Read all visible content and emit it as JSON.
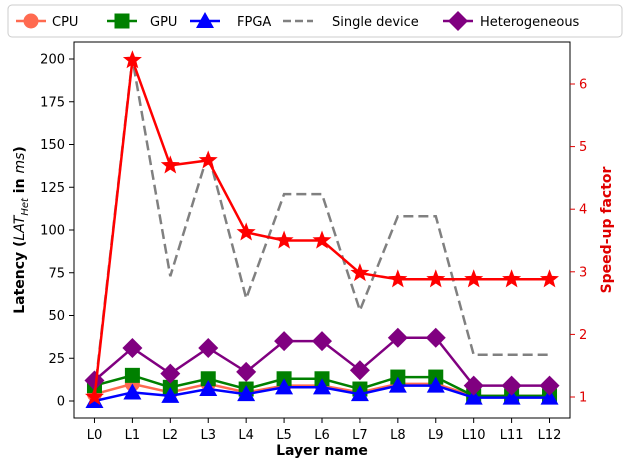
{
  "chart_data": {
    "type": "line",
    "xlabel": "Layer name",
    "ylabel_left": {
      "prefix": "Latency (",
      "italic_main": "LAT",
      "italic_sub": "Het",
      "middle": " in ",
      "italic_unit": "ms",
      "suffix": ")"
    },
    "ylabel_right": "Speed-up factor",
    "categories": [
      "L0",
      "L1",
      "L2",
      "L3",
      "L4",
      "L5",
      "L6",
      "L7",
      "L8",
      "L9",
      "L10",
      "L11",
      "L12"
    ],
    "ylim_left": [
      0,
      200
    ],
    "yticks_left": [
      "0",
      "25",
      "50",
      "75",
      "100",
      "125",
      "150",
      "175",
      "200"
    ],
    "ylim_right": [
      1,
      6.5
    ],
    "yticks_right": [
      "1",
      "2",
      "3",
      "4",
      "5",
      "6"
    ],
    "legend": [
      "CPU",
      "GPU",
      "FPGA",
      "Single device",
      "Heterogeneous"
    ],
    "legend_placement": "top",
    "series": [
      {
        "name": "CPU",
        "axis": "left",
        "color": "#ff6a50",
        "marker": "circle",
        "style": "solid",
        "values": [
          4,
          10,
          5,
          10,
          5,
          9,
          9,
          5,
          10,
          10,
          3,
          3,
          3
        ]
      },
      {
        "name": "GPU",
        "axis": "left",
        "color": "#008000",
        "marker": "square",
        "style": "solid",
        "values": [
          9,
          15,
          8,
          13,
          7,
          13,
          13,
          7,
          14,
          14,
          3,
          3,
          3
        ]
      },
      {
        "name": "FPGA",
        "axis": "left",
        "color": "#0000ff",
        "marker": "triangle",
        "style": "solid",
        "values": [
          0,
          5,
          3,
          7,
          4,
          8,
          8,
          4,
          9,
          9,
          2,
          2,
          2
        ]
      },
      {
        "name": "Single device",
        "axis": "left",
        "color": "#808080",
        "marker": "none",
        "style": "dashed",
        "values": [
          4,
          200,
          73,
          145,
          60,
          121,
          121,
          53,
          108,
          108,
          27,
          27,
          27
        ]
      },
      {
        "name": "Heterogeneous",
        "axis": "left",
        "color": "#800080",
        "marker": "diamond",
        "style": "solid",
        "values": [
          12,
          31,
          16,
          31,
          17,
          35,
          35,
          18,
          37,
          37,
          9,
          9,
          9
        ]
      },
      {
        "name": "Speed-up factor",
        "axis": "right",
        "color": "#ff0000",
        "marker": "star",
        "style": "solid",
        "values": [
          1.0,
          6.38,
          4.7,
          4.78,
          3.63,
          3.5,
          3.5,
          2.98,
          2.88,
          2.88,
          2.88,
          2.88,
          2.88
        ]
      }
    ]
  }
}
